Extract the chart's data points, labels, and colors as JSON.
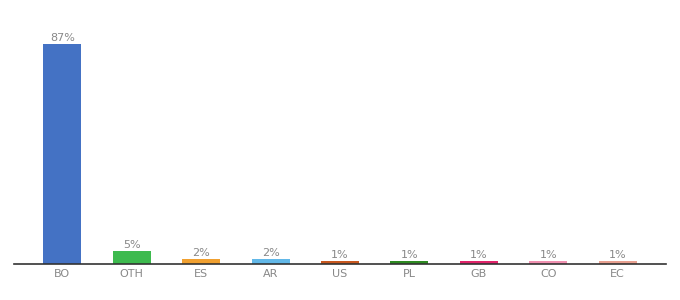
{
  "categories": [
    "BO",
    "OTH",
    "ES",
    "AR",
    "US",
    "PL",
    "GB",
    "CO",
    "EC"
  ],
  "values": [
    87,
    5,
    2,
    2,
    1,
    1,
    1,
    1,
    1
  ],
  "labels": [
    "87%",
    "5%",
    "2%",
    "2%",
    "1%",
    "1%",
    "1%",
    "1%",
    "1%"
  ],
  "bar_colors": [
    "#4472c4",
    "#3dba4e",
    "#f0a030",
    "#62b8e8",
    "#c85820",
    "#2e8b22",
    "#e0246a",
    "#f090b0",
    "#e8a090"
  ],
  "background_color": "#ffffff",
  "label_fontsize": 8,
  "tick_fontsize": 8,
  "ylim": [
    0,
    95
  ],
  "bar_width": 0.55
}
